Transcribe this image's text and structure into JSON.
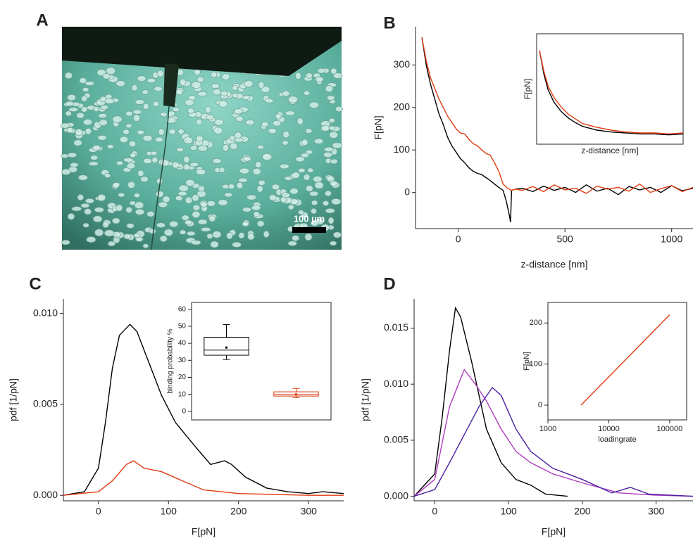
{
  "panel_labels": [
    "A",
    "B",
    "C",
    "D"
  ],
  "image": {
    "scale_bar_label": "100 µm"
  },
  "chart_data": [
    {
      "type": "line",
      "xlabel": "z-distance [nm]",
      "ylabel": "F[pN]",
      "xlim": [
        -200,
        1100
      ],
      "ylim": [
        -85,
        390
      ],
      "xticks": [
        0,
        500,
        1000
      ],
      "yticks": [
        0,
        100,
        200,
        300
      ],
      "series": [
        {
          "color": "#000000",
          "x": [
            -170,
            -150,
            -130,
            -110,
            -90,
            -70,
            -50,
            -30,
            -10,
            10,
            30,
            50,
            70,
            90,
            110,
            130,
            150,
            170,
            190,
            210,
            225,
            240,
            245,
            250,
            270,
            300,
            350,
            400,
            450,
            500,
            550,
            600,
            650,
            700,
            750,
            800,
            850,
            900,
            950,
            1000,
            1050,
            1100
          ],
          "values": [
            365,
            300,
            255,
            220,
            185,
            160,
            130,
            110,
            95,
            80,
            70,
            58,
            50,
            45,
            42,
            35,
            28,
            20,
            12,
            5,
            -20,
            -55,
            -70,
            5,
            8,
            10,
            2,
            15,
            5,
            12,
            0,
            18,
            3,
            10,
            -5,
            14,
            6,
            12,
            0,
            16,
            4,
            10
          ]
        },
        {
          "color": "#e03c10",
          "x": [
            -170,
            -150,
            -130,
            -110,
            -90,
            -70,
            -50,
            -30,
            -10,
            10,
            30,
            50,
            70,
            90,
            110,
            130,
            150,
            170,
            190,
            210,
            230,
            250,
            270,
            300,
            350,
            400,
            450,
            500,
            550,
            600,
            650,
            700,
            750,
            800,
            850,
            900,
            950,
            1000,
            1050,
            1100
          ],
          "values": [
            365,
            310,
            270,
            245,
            220,
            200,
            180,
            165,
            150,
            140,
            138,
            125,
            115,
            110,
            100,
            92,
            88,
            70,
            50,
            20,
            10,
            5,
            8,
            5,
            14,
            2,
            18,
            6,
            10,
            -2,
            15,
            8,
            12,
            3,
            20,
            0,
            9,
            16,
            2,
            12
          ]
        }
      ]
    },
    {
      "type": "line",
      "xlabel": "z-distance [nm]",
      "ylabel": "F[pN]",
      "frame": true,
      "xlim": [
        -2,
        100
      ],
      "ylim": [
        0,
        118
      ],
      "xticks": [],
      "yticks": [],
      "series": [
        {
          "color": "#000000",
          "x": [
            0,
            3,
            6,
            10,
            15,
            20,
            25,
            30,
            40,
            50,
            60,
            70,
            80,
            90,
            100
          ],
          "values": [
            100,
            75,
            58,
            45,
            35,
            28,
            23,
            19,
            15,
            13,
            12,
            11,
            11,
            10,
            11
          ]
        },
        {
          "color": "#e03c10",
          "x": [
            0,
            3,
            6,
            10,
            15,
            20,
            25,
            30,
            40,
            50,
            60,
            70,
            80,
            90,
            100
          ],
          "values": [
            100,
            78,
            62,
            50,
            40,
            32,
            27,
            22,
            18,
            15,
            13,
            12,
            12,
            11,
            12
          ]
        }
      ]
    },
    {
      "type": "line",
      "xlabel": "F[pN]",
      "ylabel": "pdf [1/pN]",
      "xlim": [
        -50,
        350
      ],
      "ylim": [
        -0.0003,
        0.0108
      ],
      "xticks": [
        0,
        100,
        200,
        300
      ],
      "yticks": [
        {
          "value": 0,
          "label": "0.000"
        },
        {
          "value": 0.005,
          "label": "0.005"
        },
        {
          "value": 0.01,
          "label": "0.010"
        }
      ],
      "series": [
        {
          "color": "#000000",
          "x": [
            -50,
            -20,
            0,
            10,
            20,
            30,
            45,
            55,
            70,
            90,
            110,
            125,
            140,
            160,
            180,
            190,
            210,
            240,
            270,
            300,
            320,
            350
          ],
          "values": [
            0,
            0.0002,
            0.0015,
            0.004,
            0.007,
            0.0088,
            0.0094,
            0.009,
            0.0075,
            0.0055,
            0.004,
            0.0033,
            0.0026,
            0.0017,
            0.0019,
            0.0017,
            0.001,
            0.0004,
            0.0002,
            0.0001,
            0.0002,
            0.0001
          ]
        },
        {
          "color": "#e03c10",
          "x": [
            -50,
            0,
            20,
            40,
            50,
            65,
            90,
            120,
            150,
            200,
            300,
            350
          ],
          "values": [
            0,
            0.0002,
            0.0008,
            0.0017,
            0.0019,
            0.0015,
            0.0013,
            0.0008,
            0.0003,
            0.0001,
            0,
            0
          ]
        }
      ]
    },
    {
      "type": "box",
      "ylabel": "binding probability %",
      "frame": true,
      "ylim": [
        -5,
        64
      ],
      "yticks": [
        0,
        10,
        20,
        30,
        40,
        50,
        60
      ],
      "boxes": [
        {
          "color": "#000000",
          "whisker_low": 30.5,
          "q1": 33,
          "median": 36,
          "q3": 43.5,
          "whisker_high": 51,
          "mean": 37.5
        },
        {
          "color": "#e03c10",
          "whisker_low": 8,
          "q1": 9,
          "median": 10,
          "q3": 11.5,
          "whisker_high": 13.5,
          "mean": 10
        }
      ]
    },
    {
      "type": "line",
      "xlabel": "F[pN]",
      "ylabel": "pdf [1/pN]",
      "xlim": [
        -28,
        350
      ],
      "ylim": [
        -0.0004,
        0.0176
      ],
      "xticks": [
        0,
        100,
        200,
        300
      ],
      "yticks": [
        {
          "value": 0,
          "label": "0.000"
        },
        {
          "value": 0.005,
          "label": "0.005"
        },
        {
          "value": 0.01,
          "label": "0.010"
        },
        {
          "value": 0.015,
          "label": "0.015"
        }
      ],
      "series": [
        {
          "color": "#000000",
          "x": [
            -28,
            0,
            10,
            20,
            28,
            35,
            50,
            70,
            90,
            110,
            130,
            150,
            180
          ],
          "values": [
            0,
            0.002,
            0.007,
            0.013,
            0.0168,
            0.016,
            0.012,
            0.006,
            0.003,
            0.0015,
            0.001,
            0.0002,
            0
          ]
        },
        {
          "color": "#b03cc0",
          "x": [
            -28,
            0,
            20,
            40,
            55,
            70,
            90,
            110,
            130,
            160,
            200,
            250,
            300,
            350
          ],
          "values": [
            0,
            0.0015,
            0.008,
            0.0113,
            0.01,
            0.0085,
            0.006,
            0.004,
            0.003,
            0.002,
            0.0012,
            0.0003,
            0.0001,
            0
          ]
        },
        {
          "color": "#4b1fa0",
          "x": [
            -28,
            0,
            20,
            40,
            60,
            78,
            90,
            110,
            130,
            160,
            200,
            240,
            265,
            290,
            350
          ],
          "values": [
            0,
            0.0006,
            0.003,
            0.0055,
            0.008,
            0.0097,
            0.009,
            0.006,
            0.004,
            0.0025,
            0.0015,
            0.0003,
            0.0008,
            0.0002,
            0
          ]
        }
      ]
    },
    {
      "type": "line",
      "xlabel": "loadingrate",
      "ylabel": "F[pN]",
      "frame": true,
      "xscale": "log",
      "xlim": [
        1000,
        190000
      ],
      "ylim": [
        -36,
        250
      ],
      "xticks": [
        1000,
        10000,
        100000
      ],
      "yticks": [
        0,
        100,
        200
      ],
      "series": [
        {
          "color": "#e03c10",
          "x": [
            3500,
            100000
          ],
          "values": [
            0,
            220
          ]
        }
      ]
    }
  ]
}
